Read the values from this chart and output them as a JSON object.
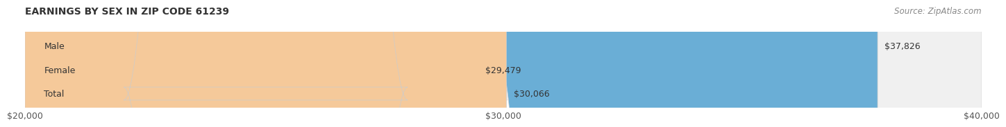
{
  "title": "EARNINGS BY SEX IN ZIP CODE 61239",
  "source": "Source: ZipAtlas.com",
  "categories": [
    "Male",
    "Female",
    "Total"
  ],
  "values": [
    37826,
    29479,
    30066
  ],
  "bar_colors": [
    "#6aaed6",
    "#f4a0b5",
    "#f5c99a"
  ],
  "bg_bar_color": "#f0f0f0",
  "x_min": 20000,
  "x_max": 40000,
  "x_ticks": [
    20000,
    30000,
    40000
  ],
  "x_tick_labels": [
    "$20,000",
    "$30,000",
    "$40,000"
  ],
  "value_labels": [
    "$37,826",
    "$29,479",
    "$30,066"
  ],
  "bg_color": "#ffffff",
  "bar_height": 0.55,
  "label_fontsize": 9,
  "title_fontsize": 10,
  "source_fontsize": 8.5
}
